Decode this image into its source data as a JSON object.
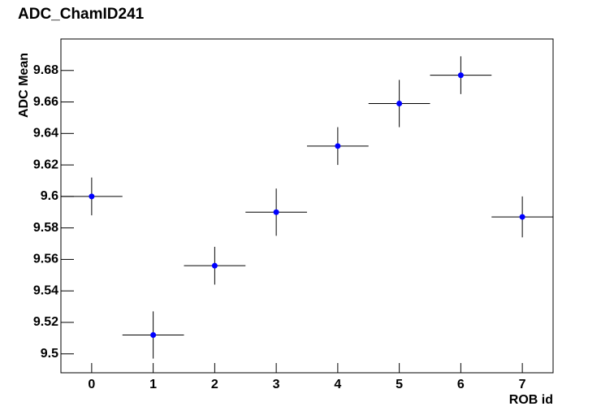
{
  "chart_data": {
    "type": "scatter",
    "title": "ADC_ChamID241",
    "x_label": "ROB id",
    "y_label": "ADC Mean",
    "x": [
      0,
      1,
      2,
      3,
      4,
      5,
      6,
      7
    ],
    "values": [
      9.6,
      9.512,
      9.556,
      9.59,
      9.632,
      9.659,
      9.677,
      9.587
    ],
    "yerr": [
      0.012,
      0.015,
      0.012,
      0.015,
      0.012,
      0.015,
      0.012,
      0.013
    ],
    "xerr": [
      0.5,
      0.5,
      0.5,
      0.5,
      0.5,
      0.5,
      0.5,
      0.5
    ],
    "color": "#0000ff",
    "xlim": [
      -0.5,
      7.5
    ],
    "xticks": [
      0,
      1,
      2,
      3,
      4,
      5,
      6,
      7
    ],
    "ylim": [
      9.488,
      9.7
    ],
    "yticks": [
      9.5,
      9.52,
      9.54,
      9.56,
      9.58,
      9.6,
      9.62,
      9.64,
      9.66,
      9.68
    ],
    "grid": false
  }
}
